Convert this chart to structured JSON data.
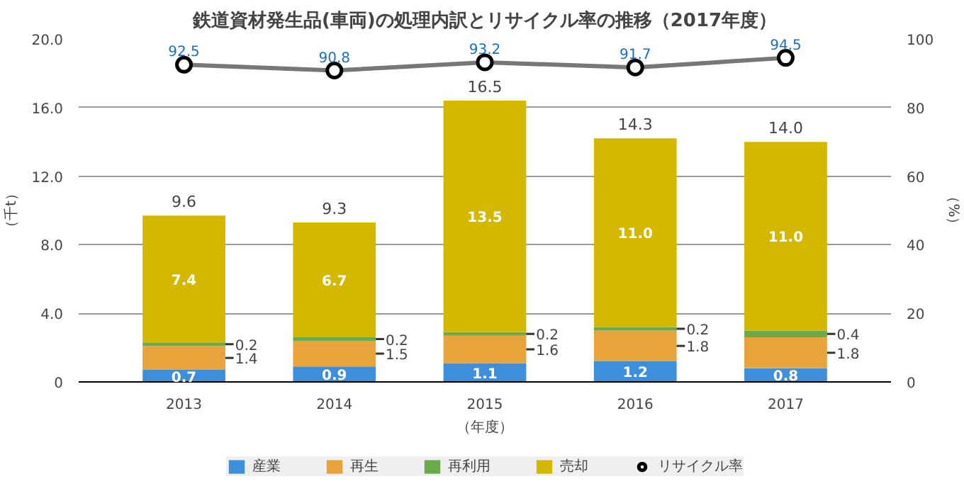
{
  "chart_data": {
    "type": "bar",
    "stacked": true,
    "title": "鉄道資材発生品(車両)の処理内訳とリサイクル率の推移（2017年度）",
    "categories": [
      "2013",
      "2014",
      "2015",
      "2016",
      "2017"
    ],
    "series": [
      {
        "name": "産業",
        "color": "#3d8fdc",
        "values": [
          0.7,
          0.9,
          1.1,
          1.2,
          0.8
        ],
        "value_labels": [
          "0.7",
          "0.9",
          "1.1",
          "1.2",
          "0.8"
        ]
      },
      {
        "name": "再生",
        "color": "#e8a43a",
        "values": [
          1.4,
          1.5,
          1.6,
          1.8,
          1.8
        ],
        "value_labels": [
          "1.4",
          "1.5",
          "1.6",
          "1.8",
          "1.8"
        ]
      },
      {
        "name": "再利用",
        "color": "#6aaa4a",
        "values": [
          0.2,
          0.2,
          0.2,
          0.2,
          0.4
        ],
        "value_labels": [
          "0.2",
          "0.2",
          "0.2",
          "0.2",
          "0.4"
        ]
      },
      {
        "name": "売却",
        "color": "#d4b800",
        "values": [
          7.4,
          6.7,
          13.5,
          11.0,
          11.0
        ],
        "value_labels": [
          "7.4",
          "6.7",
          "13.5",
          "11.0",
          "11.0"
        ]
      },
      {
        "name": "リサイクル率",
        "type": "line",
        "axis": "y2",
        "color": "#777777",
        "marker": "circle",
        "values": [
          92.5,
          90.8,
          93.2,
          91.7,
          94.5
        ],
        "value_labels": [
          "92.5",
          "90.8",
          "93.2",
          "91.7",
          "94.5"
        ]
      }
    ],
    "totals": [
      "9.6",
      "9.3",
      "16.5",
      "14.3",
      "14.0"
    ],
    "ylabel": "（千t）",
    "y2label": "（%）",
    "xlabel": "（年度）",
    "ylim": [
      0,
      20
    ],
    "yticks": [
      0,
      {
        "value": 4,
        "label": "4.0"
      },
      {
        "value": 8,
        "label": "8.0"
      },
      {
        "value": 12,
        "label": "12.0"
      },
      {
        "value": 16,
        "label": "16.0"
      },
      {
        "value": 20,
        "label": "20.0"
      }
    ],
    "y2lim": [
      0,
      100
    ],
    "y2ticks": [
      0,
      20,
      40,
      60,
      80,
      100
    ],
    "grid": "y",
    "legend": "bottom"
  }
}
